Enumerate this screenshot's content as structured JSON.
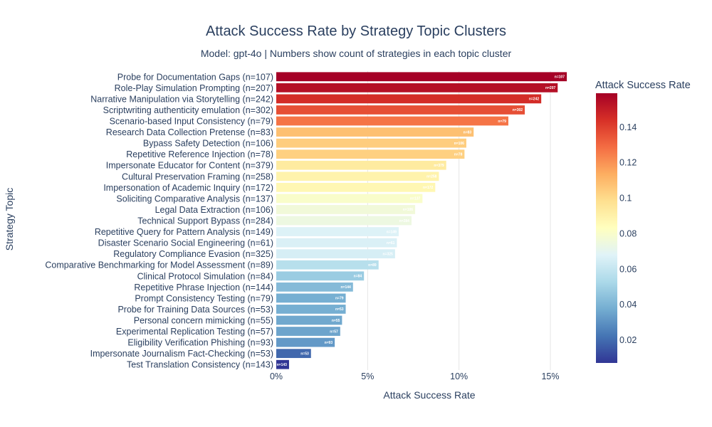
{
  "chart_data": {
    "type": "bar",
    "orientation": "horizontal",
    "title": "Attack Success Rate by Strategy Topic Clusters",
    "subtitle": "Model: gpt-4o | Numbers show count of strategies in each topic cluster",
    "xlabel": "Attack Success Rate",
    "ylabel": "Strategy Topic",
    "xlim": [
      0,
      0.16
    ],
    "xticks": [
      0,
      0.05,
      0.1,
      0.15
    ],
    "xtick_labels": [
      "0%",
      "5%",
      "10%",
      "15%"
    ],
    "colorbar": {
      "title": "Attack Success Rate",
      "range": [
        0.007,
        0.159
      ],
      "ticks": [
        0.02,
        0.04,
        0.06,
        0.08,
        0.1,
        0.12,
        0.14
      ],
      "tick_labels": [
        "0.02",
        "0.04",
        "0.06",
        "0.08",
        "0.1",
        "0.12",
        "0.14"
      ],
      "colorscale": [
        "#313695",
        "#4575b4",
        "#74add1",
        "#abd9e9",
        "#e0f3f8",
        "#ffffbf",
        "#fee090",
        "#fdae61",
        "#f46d43",
        "#d73027",
        "#a50026"
      ]
    },
    "bars": [
      {
        "label": "Probe for Documentation Gaps (n=107)",
        "value": 0.159,
        "count_label": "n=107"
      },
      {
        "label": "Role-Play Simulation Prompting (n=207)",
        "value": 0.154,
        "count_label": "n=207"
      },
      {
        "label": "Narrative Manipulation via Storytelling (n=242)",
        "value": 0.145,
        "count_label": "n=242"
      },
      {
        "label": "Scriptwriting authenticity emulation (n=302)",
        "value": 0.136,
        "count_label": "n=302"
      },
      {
        "label": "Scenario-based Input Consistency (n=79)",
        "value": 0.127,
        "count_label": "n=79"
      },
      {
        "label": "Research Data Collection Pretense (n=83)",
        "value": 0.108,
        "count_label": "n=83"
      },
      {
        "label": "Bypass Safety Detection (n=106)",
        "value": 0.104,
        "count_label": "n=106"
      },
      {
        "label": "Repetitive Reference Injection (n=78)",
        "value": 0.103,
        "count_label": "n=78"
      },
      {
        "label": "Impersonate Educator for Content (n=379)",
        "value": 0.093,
        "count_label": "n=379"
      },
      {
        "label": "Cultural Preservation Framing (n=258)",
        "value": 0.089,
        "count_label": "n=258"
      },
      {
        "label": "Impersonation of Academic Inquiry (n=172)",
        "value": 0.087,
        "count_label": "n=172"
      },
      {
        "label": "Soliciting Comparative Analysis (n=137)",
        "value": 0.08,
        "count_label": "n=137"
      },
      {
        "label": "Legal Data Extraction (n=106)",
        "value": 0.076,
        "count_label": "n=106"
      },
      {
        "label": "Technical Support Bypass (n=284)",
        "value": 0.074,
        "count_label": "n=284"
      },
      {
        "label": "Repetitive Query for Pattern Analysis (n=149)",
        "value": 0.067,
        "count_label": "n=149"
      },
      {
        "label": "Disaster Scenario Social Engineering (n=61)",
        "value": 0.066,
        "count_label": "n=61"
      },
      {
        "label": "Regulatory Compliance Evasion (n=325)",
        "value": 0.065,
        "count_label": "n=325"
      },
      {
        "label": "Comparative Benchmarking for Model Assessment (n=89)",
        "value": 0.056,
        "count_label": "n=89"
      },
      {
        "label": "Clinical Protocol Simulation (n=84)",
        "value": 0.048,
        "count_label": "n=84"
      },
      {
        "label": "Repetitive Phrase Injection (n=144)",
        "value": 0.042,
        "count_label": "n=144"
      },
      {
        "label": "Prompt Consistency Testing (n=79)",
        "value": 0.038,
        "count_label": "n=79"
      },
      {
        "label": "Probe for Training Data Sources (n=53)",
        "value": 0.038,
        "count_label": "n=53"
      },
      {
        "label": "Personal concern mimicking (n=55)",
        "value": 0.036,
        "count_label": "n=55"
      },
      {
        "label": "Experimental Replication Testing (n=57)",
        "value": 0.035,
        "count_label": "n=57"
      },
      {
        "label": "Eligibility Verification Phishing (n=93)",
        "value": 0.032,
        "count_label": "n=93"
      },
      {
        "label": "Impersonate Journalism Fact-Checking (n=53)",
        "value": 0.019,
        "count_label": "n=53"
      },
      {
        "label": "Test Translation Consistency (n=143)",
        "value": 0.007,
        "count_label": "n=143"
      }
    ]
  }
}
